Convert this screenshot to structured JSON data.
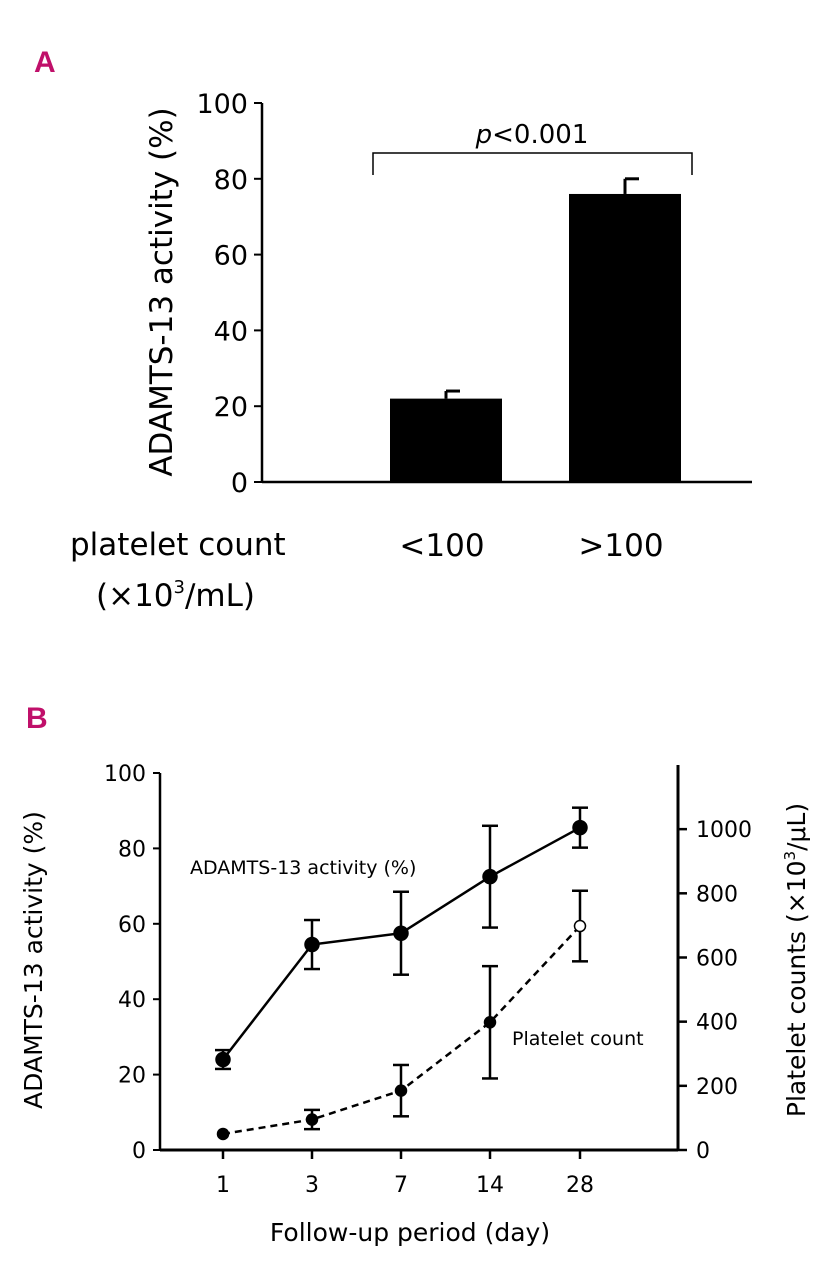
{
  "accent_color": "#c0106a",
  "chart_data": [
    {
      "panel": "A",
      "type": "bar",
      "ylabel": "ADAMTS-13 activity (%)",
      "ylim": [
        0,
        100
      ],
      "yticks": [
        0,
        20,
        40,
        60,
        80,
        100
      ],
      "categories": [
        "<100",
        ">100"
      ],
      "values": [
        22,
        76
      ],
      "errors": [
        2,
        4
      ],
      "xlabel_line1": "platelet count",
      "xlabel_line2_pre": "(×10",
      "xlabel_line2_sup": "3",
      "xlabel_line2_post": "/mL)",
      "annotation_italic": "p",
      "annotation_rest": "<0.001",
      "bar_color": "#000000"
    },
    {
      "panel": "B",
      "type": "line",
      "xlabel": "Follow-up period (day)",
      "categories": [
        "1",
        "3",
        "7",
        "14",
        "28"
      ],
      "ylabel_left": "ADAMTS-13 activity (%)",
      "ylim_left": [
        0,
        100
      ],
      "yticks_left": [
        0,
        20,
        40,
        60,
        80,
        100
      ],
      "ylabel_right_pre": "Platelet counts (×10",
      "ylabel_right_sup": "3",
      "ylabel_right_post": "/μL)",
      "ylim_right": [
        0,
        1175
      ],
      "yticks_right": [
        0,
        200,
        400,
        600,
        800,
        1000
      ],
      "series": [
        {
          "name": "ADAMTS-13 activity (%)",
          "axis": "left",
          "style": "solid",
          "values": [
            24,
            54.5,
            57.5,
            72.5,
            85.5
          ],
          "errors": [
            2.5,
            6.5,
            11,
            13.5,
            5.3
          ]
        },
        {
          "name": "Platelet count",
          "axis": "right",
          "style": "dashed",
          "values": [
            50,
            95,
            185,
            398,
            698
          ],
          "errors": [
            0,
            30,
            80,
            175,
            110
          ]
        }
      ]
    }
  ]
}
